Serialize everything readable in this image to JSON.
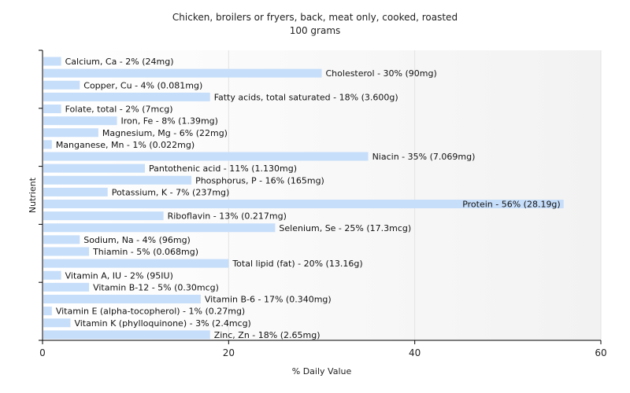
{
  "chart_data": {
    "type": "bar",
    "orientation": "horizontal",
    "title": "Chicken, broilers or fryers, back, meat only, cooked, roasted",
    "subtitle": "100 grams",
    "xlabel": "% Daily Value",
    "ylabel": "Nutrient",
    "xlim": [
      0,
      60
    ],
    "xticks": [
      0,
      20,
      40,
      60
    ],
    "grid": true,
    "legend": "none",
    "bar_color": "#c6defa",
    "categories": [
      "Calcium, Ca",
      "Cholesterol",
      "Copper, Cu",
      "Fatty acids, total saturated",
      "Folate, total",
      "Iron, Fe",
      "Magnesium, Mg",
      "Manganese, Mn",
      "Niacin",
      "Pantothenic acid",
      "Phosphorus, P",
      "Potassium, K",
      "Protein",
      "Riboflavin",
      "Selenium, Se",
      "Sodium, Na",
      "Thiamin",
      "Total lipid (fat)",
      "Vitamin A, IU",
      "Vitamin B-12",
      "Vitamin B-6",
      "Vitamin E (alpha-tocopherol)",
      "Vitamin K (phylloquinone)",
      "Zinc, Zn"
    ],
    "values": [
      2,
      30,
      4,
      18,
      2,
      8,
      6,
      1,
      35,
      11,
      16,
      7,
      56,
      13,
      25,
      4,
      5,
      20,
      2,
      5,
      17,
      1,
      3,
      18
    ],
    "labels": [
      "Calcium, Ca - 2% (24mg)",
      "Cholesterol - 30% (90mg)",
      "Copper, Cu - 4% (0.081mg)",
      "Fatty acids, total saturated - 18% (3.600g)",
      "Folate, total - 2% (7mcg)",
      "Iron, Fe - 8% (1.39mg)",
      "Magnesium, Mg - 6% (22mg)",
      "Manganese, Mn - 1% (0.022mg)",
      "Niacin - 35% (7.069mg)",
      "Pantothenic acid - 11% (1.130mg)",
      "Phosphorus, P - 16% (165mg)",
      "Potassium, K - 7% (237mg)",
      "Protein - 56% (28.19g)",
      "Riboflavin - 13% (0.217mg)",
      "Selenium, Se - 25% (17.3mcg)",
      "Sodium, Na - 4% (96mg)",
      "Thiamin - 5% (0.068mg)",
      "Total lipid (fat) - 20% (13.16g)",
      "Vitamin A, IU - 2% (95IU)",
      "Vitamin B-12 - 5% (0.30mcg)",
      "Vitamin B-6 - 17% (0.340mg)",
      "Vitamin E (alpha-tocopherol) - 1% (0.27mg)",
      "Vitamin K (phylloquinone) - 3% (2.4mcg)",
      "Zinc, Zn - 18% (2.65mg)"
    ]
  }
}
